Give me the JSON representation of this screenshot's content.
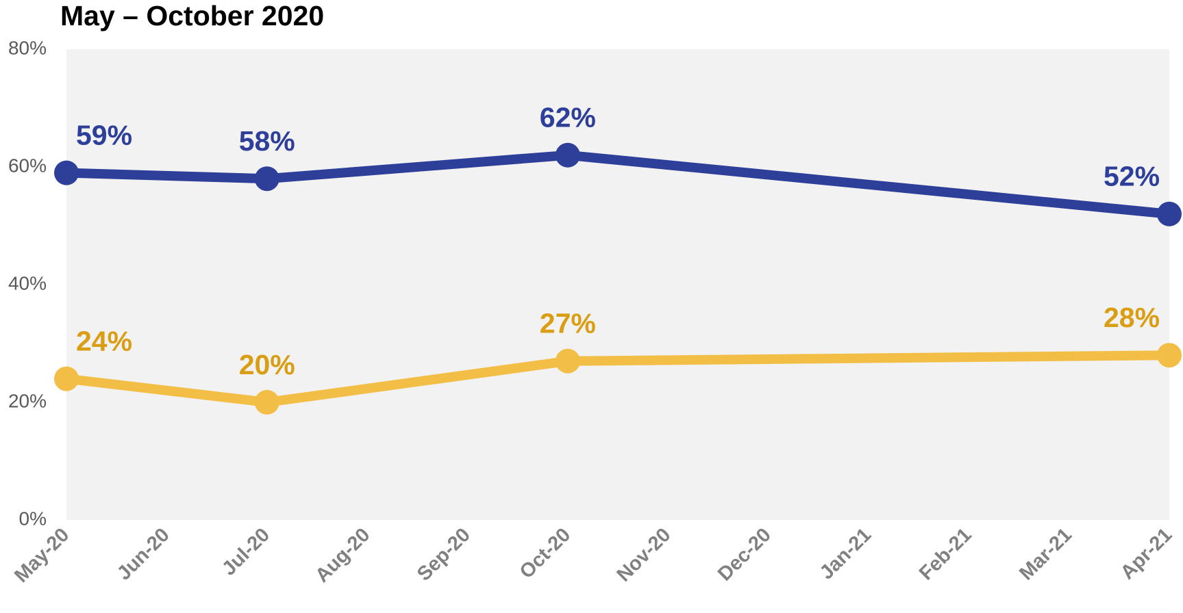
{
  "chart_data": {
    "type": "line",
    "title": "May – October 2020",
    "xticks": [
      "May-20",
      "Jun-20",
      "Jul-20",
      "Aug-20",
      "Sep-20",
      "Oct-20",
      "Nov-20",
      "Dec-20",
      "Jan-21",
      "Feb-21",
      "Mar-21",
      "Apr-21"
    ],
    "x": [
      "May-20",
      "Jul-20",
      "Oct-20",
      "Apr-21"
    ],
    "series": [
      {
        "color": "#2e3f9a",
        "label_color": "#2e3f9a",
        "values": [
          59,
          58,
          62,
          52
        ],
        "value_labels": [
          "59%",
          "58%",
          "62%",
          "52%"
        ]
      },
      {
        "color": "#f2be45",
        "label_color": "#d99e14",
        "values": [
          24,
          20,
          27,
          28
        ],
        "value_labels": [
          "24%",
          "20%",
          "27%",
          "28%"
        ]
      }
    ],
    "ylim": [
      0,
      80
    ],
    "yticks": [
      {
        "value": 0,
        "label": "0%"
      },
      {
        "value": 20,
        "label": "20%"
      },
      {
        "value": 40,
        "label": "40%"
      },
      {
        "value": 60,
        "label": "60%"
      },
      {
        "value": 80,
        "label": "80%"
      }
    ],
    "grid": false
  }
}
